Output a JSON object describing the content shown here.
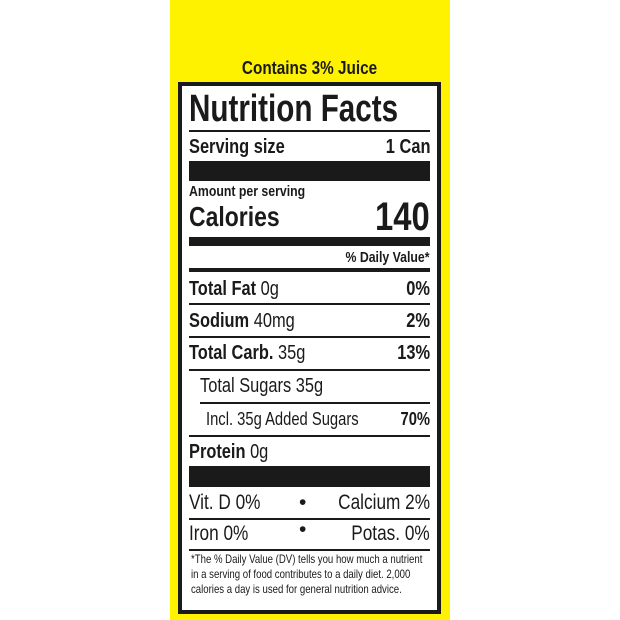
{
  "header": {
    "juice_note": "Contains 3% Juice"
  },
  "label": {
    "title": "Nutrition Facts",
    "serving_size_label": "Serving size",
    "serving_size_value": "1 Can",
    "amount_per_serving": "Amount per serving",
    "calories_label": "Calories",
    "calories_value": "140",
    "daily_value_header": "% Daily Value*",
    "nutrients": [
      {
        "name": "Total Fat",
        "amount": "0g",
        "dv": "0%"
      },
      {
        "name": "Sodium",
        "amount": "40mg",
        "dv": "2%"
      },
      {
        "name": "Total Carb.",
        "amount": "35g",
        "dv": "13%"
      },
      {
        "name": "Total Sugars 35g",
        "amount": "",
        "dv": ""
      },
      {
        "name": "Incl. 35g Added Sugars",
        "amount": "",
        "dv": "70%"
      },
      {
        "name": "Protein",
        "amount": "0g",
        "dv": ""
      }
    ],
    "vitamins": [
      {
        "left": "Vit. D 0%",
        "right": "Calcium 2%"
      },
      {
        "left": "Iron 0%",
        "right": "Potas. 0%"
      }
    ],
    "bullet": "•",
    "footnote": "*The % Daily Value (DV) tells you how much a nutrient in a serving of food contributes to a daily diet. 2,000 calories a day is used for general nutrition advice."
  },
  "colors": {
    "background_band": "#fff200",
    "ink": "#1a1a1a"
  }
}
